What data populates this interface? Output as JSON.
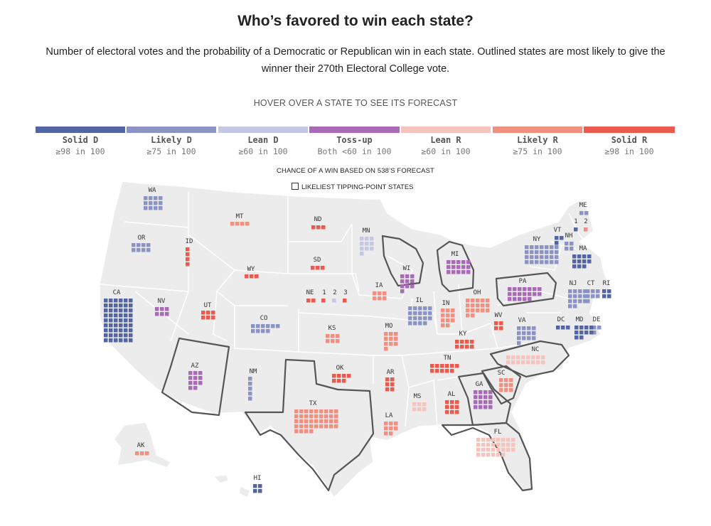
{
  "title": "Who’s favored to win each state?",
  "subtitle": "Number of electoral votes and the probability of a Democratic or Republican win in each state. Outlined states are most likely to give the winner their 270th Electoral College vote.",
  "hover_prompt": "HOVER OVER A STATE TO SEE ITS FORECAST",
  "legend": [
    {
      "key": "solid_d",
      "name": "Solid D",
      "desc": "≥98 in 100",
      "color": "#5365a5"
    },
    {
      "key": "likely_d",
      "name": "Likely D",
      "desc": "≥75 in 100",
      "color": "#8c93c5"
    },
    {
      "key": "lean_d",
      "name": "Lean D",
      "desc": "≥60 in 100",
      "color": "#c5c8e2"
    },
    {
      "key": "tossup",
      "name": "Toss-up",
      "desc": "Both <60 in 100",
      "color": "#a96bb8"
    },
    {
      "key": "lean_r",
      "name": "Lean R",
      "desc": "≥60 in 100",
      "color": "#f7c3bd"
    },
    {
      "key": "likely_r",
      "name": "Likely R",
      "desc": "≥75 in 100",
      "color": "#f19080"
    },
    {
      "key": "solid_r",
      "name": "Solid R",
      "desc": "≥98 in 100",
      "color": "#ea5a4f"
    }
  ],
  "chance_label": "CHANCE OF A WIN BASED ON 538’S FORECAST",
  "tipping_label": "LIKELIEST TIPPING-POINT STATES",
  "states": [
    {
      "abbr": "WA",
      "votes": 12,
      "rating": "likely_d"
    },
    {
      "abbr": "OR",
      "votes": 8,
      "rating": "likely_d"
    },
    {
      "abbr": "CA",
      "votes": 54,
      "rating": "solid_d"
    },
    {
      "abbr": "ID",
      "votes": 4,
      "rating": "solid_r"
    },
    {
      "abbr": "NV",
      "votes": 6,
      "rating": "tossup",
      "tipping": false
    },
    {
      "abbr": "MT",
      "votes": 4,
      "rating": "likely_r"
    },
    {
      "abbr": "WY",
      "votes": 3,
      "rating": "solid_r"
    },
    {
      "abbr": "UT",
      "votes": 6,
      "rating": "solid_r"
    },
    {
      "abbr": "CO",
      "votes": 10,
      "rating": "likely_d"
    },
    {
      "abbr": "AZ",
      "votes": 11,
      "rating": "tossup",
      "tipping": true
    },
    {
      "abbr": "NM",
      "votes": 5,
      "rating": "likely_d"
    },
    {
      "abbr": "ND",
      "votes": 3,
      "rating": "solid_r"
    },
    {
      "abbr": "SD",
      "votes": 3,
      "rating": "solid_r"
    },
    {
      "abbr": "NE",
      "votes": 2,
      "rating": "solid_r"
    },
    {
      "abbr": "1",
      "votes": 1,
      "rating": "solid_r"
    },
    {
      "abbr": "2",
      "votes": 1,
      "rating": "lean_d"
    },
    {
      "abbr": "3",
      "votes": 1,
      "rating": "solid_r"
    },
    {
      "abbr": "KS",
      "votes": 6,
      "rating": "likely_r"
    },
    {
      "abbr": "OK",
      "votes": 7,
      "rating": "solid_r"
    },
    {
      "abbr": "TX",
      "votes": 40,
      "rating": "likely_r"
    },
    {
      "abbr": "MN",
      "votes": 10,
      "rating": "lean_d"
    },
    {
      "abbr": "IA",
      "votes": 6,
      "rating": "likely_r"
    },
    {
      "abbr": "MO",
      "votes": 10,
      "rating": "likely_r"
    },
    {
      "abbr": "AR",
      "votes": 6,
      "rating": "solid_r"
    },
    {
      "abbr": "LA",
      "votes": 8,
      "rating": "likely_r"
    },
    {
      "abbr": "WI",
      "votes": 10,
      "rating": "tossup",
      "tipping": true
    },
    {
      "abbr": "IL",
      "votes": 19,
      "rating": "likely_d"
    },
    {
      "abbr": "MI",
      "votes": 15,
      "rating": "tossup",
      "tipping": true
    },
    {
      "abbr": "IN",
      "votes": 11,
      "rating": "likely_r"
    },
    {
      "abbr": "OH",
      "votes": 17,
      "rating": "likely_r"
    },
    {
      "abbr": "KY",
      "votes": 8,
      "rating": "solid_r"
    },
    {
      "abbr": "TN",
      "votes": 11,
      "rating": "solid_r"
    },
    {
      "abbr": "MS",
      "votes": 6,
      "rating": "lean_r"
    },
    {
      "abbr": "AL",
      "votes": 9,
      "rating": "solid_r"
    },
    {
      "abbr": "GA",
      "votes": 16,
      "rating": "tossup",
      "tipping": true
    },
    {
      "abbr": "FL",
      "votes": 30,
      "rating": "lean_r",
      "tipping": true
    },
    {
      "abbr": "SC",
      "votes": 9,
      "rating": "likely_r",
      "tipping": true
    },
    {
      "abbr": "NC",
      "votes": 16,
      "rating": "lean_r",
      "tipping": true
    },
    {
      "abbr": "VA",
      "votes": 13,
      "rating": "likely_d"
    },
    {
      "abbr": "WV",
      "votes": 4,
      "rating": "solid_r"
    },
    {
      "abbr": "PA",
      "votes": 19,
      "rating": "tossup",
      "tipping": true
    },
    {
      "abbr": "NY",
      "votes": 28,
      "rating": "likely_d"
    },
    {
      "abbr": "VT",
      "votes": 3,
      "rating": "solid_d"
    },
    {
      "abbr": "NH",
      "votes": 4,
      "rating": "likely_d"
    },
    {
      "abbr": "ME",
      "votes": 2,
      "rating": "likely_d"
    },
    {
      "abbr": "1",
      "votes": 1,
      "rating": "solid_d"
    },
    {
      "abbr": "2",
      "votes": 1,
      "rating": "likely_r"
    },
    {
      "abbr": "MA",
      "votes": 11,
      "rating": "solid_d"
    },
    {
      "abbr": "RI",
      "votes": 4,
      "rating": "solid_d"
    },
    {
      "abbr": "CT",
      "votes": 7,
      "rating": "likely_d"
    },
    {
      "abbr": "NJ",
      "votes": 14,
      "rating": "likely_d"
    },
    {
      "abbr": "DE",
      "votes": 3,
      "rating": "likely_d"
    },
    {
      "abbr": "MD",
      "votes": 10,
      "rating": "solid_d"
    },
    {
      "abbr": "DC",
      "votes": 3,
      "rating": "solid_d"
    },
    {
      "abbr": "AK",
      "votes": 3,
      "rating": "likely_r"
    },
    {
      "abbr": "HI",
      "votes": 4,
      "rating": "solid_d"
    }
  ]
}
